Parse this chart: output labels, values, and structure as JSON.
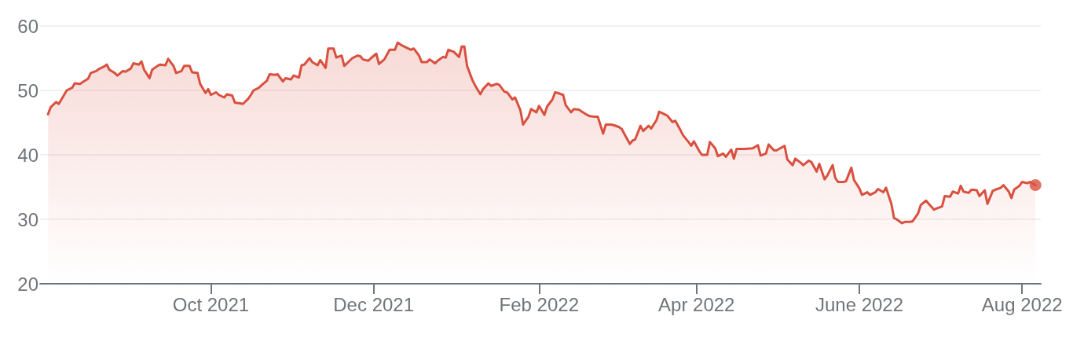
{
  "chart_data": {
    "type": "area",
    "x": [
      "2021-08-01",
      "2021-08-02",
      "2021-08-04",
      "2021-08-05",
      "2021-08-07",
      "2021-08-08",
      "2021-08-10",
      "2021-08-11",
      "2021-08-13",
      "2021-08-14",
      "2021-08-16",
      "2021-08-17",
      "2021-08-19",
      "2021-08-20",
      "2021-08-22",
      "2021-08-23",
      "2021-08-24",
      "2021-08-26",
      "2021-08-27",
      "2021-08-29",
      "2021-08-30",
      "2021-09-01",
      "2021-09-02",
      "2021-09-04",
      "2021-09-05",
      "2021-09-06",
      "2021-09-08",
      "2021-09-09",
      "2021-09-11",
      "2021-09-12",
      "2021-09-14",
      "2021-09-15",
      "2021-09-17",
      "2021-09-18",
      "2021-09-20",
      "2021-09-21",
      "2021-09-23",
      "2021-09-24",
      "2021-09-26",
      "2021-09-27",
      "2021-09-29",
      "2021-09-30",
      "2021-10-01",
      "2021-10-03",
      "2021-10-04",
      "2021-10-06",
      "2021-10-07",
      "2021-10-09",
      "2021-10-10",
      "2021-10-12",
      "2021-10-13",
      "2021-10-15",
      "2021-10-16",
      "2021-10-17",
      "2021-10-19",
      "2021-10-20",
      "2021-10-22",
      "2021-10-23",
      "2021-10-25",
      "2021-10-26",
      "2021-10-28",
      "2021-10-29",
      "2021-10-31",
      "2021-11-01",
      "2021-11-03",
      "2021-11-04",
      "2021-11-05",
      "2021-11-07",
      "2021-11-08",
      "2021-11-10",
      "2021-11-11",
      "2021-11-13",
      "2021-11-14",
      "2021-11-16",
      "2021-11-17",
      "2021-11-19",
      "2021-11-20",
      "2021-11-22",
      "2021-11-23",
      "2021-11-25",
      "2021-11-26",
      "2021-11-27",
      "2021-11-29",
      "2021-11-30",
      "2021-12-02",
      "2021-12-03",
      "2021-12-05",
      "2021-12-07",
      "2021-12-09",
      "2021-12-10",
      "2021-12-12",
      "2021-12-13",
      "2021-12-15",
      "2021-12-16",
      "2021-12-18",
      "2021-12-19",
      "2021-12-21",
      "2021-12-22",
      "2021-12-24",
      "2021-12-25",
      "2021-12-27",
      "2021-12-28",
      "2021-12-29",
      "2021-12-31",
      "2022-01-02",
      "2022-01-03",
      "2022-01-04",
      "2022-01-05",
      "2022-01-07",
      "2022-01-08",
      "2022-01-10",
      "2022-01-11",
      "2022-01-13",
      "2022-01-14",
      "2022-01-16",
      "2022-01-17",
      "2022-01-19",
      "2022-01-20",
      "2022-01-22",
      "2022-01-23",
      "2022-01-25",
      "2022-01-26",
      "2022-01-28",
      "2022-01-29",
      "2022-01-31",
      "2022-02-01",
      "2022-02-03",
      "2022-02-04",
      "2022-02-06",
      "2022-02-07",
      "2022-02-08",
      "2022-02-10",
      "2022-02-11",
      "2022-02-13",
      "2022-02-14",
      "2022-02-16",
      "2022-02-17",
      "2022-02-19",
      "2022-02-20",
      "2022-02-22",
      "2022-02-23",
      "2022-02-25",
      "2022-02-26",
      "2022-02-28",
      "2022-03-01",
      "2022-03-03",
      "2022-03-04",
      "2022-03-05",
      "2022-03-07",
      "2022-03-08",
      "2022-03-09",
      "2022-03-11",
      "2022-03-12",
      "2022-03-14",
      "2022-03-15",
      "2022-03-17",
      "2022-03-18",
      "2022-03-20",
      "2022-03-21",
      "2022-03-23",
      "2022-03-24",
      "2022-03-26",
      "2022-03-27",
      "2022-03-29",
      "2022-03-30",
      "2022-03-31",
      "2022-04-02",
      "2022-04-03",
      "2022-04-05",
      "2022-04-06",
      "2022-04-08",
      "2022-04-09",
      "2022-04-11",
      "2022-04-12",
      "2022-04-14",
      "2022-04-15",
      "2022-04-16",
      "2022-04-19",
      "2022-04-22",
      "2022-04-24",
      "2022-04-25",
      "2022-04-27",
      "2022-04-28",
      "2022-04-30",
      "2022-05-01",
      "2022-05-04",
      "2022-05-05",
      "2022-05-07",
      "2022-05-08",
      "2022-05-10",
      "2022-05-11",
      "2022-05-13",
      "2022-05-14",
      "2022-05-16",
      "2022-05-17",
      "2022-05-19",
      "2022-05-20",
      "2022-05-22",
      "2022-05-23",
      "2022-05-24",
      "2022-05-26",
      "2022-05-27",
      "2022-05-29",
      "2022-05-30",
      "2022-06-01",
      "2022-06-02",
      "2022-06-04",
      "2022-06-05",
      "2022-06-07",
      "2022-06-08",
      "2022-06-10",
      "2022-06-11",
      "2022-06-13",
      "2022-06-14",
      "2022-06-15",
      "2022-06-17",
      "2022-06-18",
      "2022-06-20",
      "2022-06-21",
      "2022-06-23",
      "2022-06-24",
      "2022-06-26",
      "2022-06-27",
      "2022-06-29",
      "2022-06-30",
      "2022-07-02",
      "2022-07-03",
      "2022-07-05",
      "2022-07-06",
      "2022-07-08",
      "2022-07-09",
      "2022-07-10",
      "2022-07-12",
      "2022-07-13",
      "2022-07-15",
      "2022-07-16",
      "2022-07-18",
      "2022-07-19",
      "2022-07-21",
      "2022-07-22",
      "2022-07-24",
      "2022-07-25",
      "2022-07-27",
      "2022-07-28",
      "2022-07-29",
      "2022-07-31",
      "2022-08-01",
      "2022-08-03",
      "2022-08-04",
      "2022-08-06"
    ],
    "series": [
      {
        "color": "#d9503f",
        "values": [
          46.3,
          47.4,
          48.2,
          47.9,
          49.3,
          50.0,
          50.4,
          51.1,
          51.0,
          51.3,
          51.8,
          52.7,
          53.0,
          53.3,
          53.7,
          54.0,
          53.2,
          52.7,
          52.3,
          53.0,
          52.9,
          53.4,
          54.2,
          54.0,
          54.5,
          53.2,
          51.9,
          53.2,
          53.8,
          54.0,
          53.9,
          54.9,
          53.8,
          52.7,
          53.0,
          53.8,
          53.8,
          52.8,
          52.7,
          51.0,
          49.6,
          50.2,
          49.3,
          49.7,
          49.3,
          48.9,
          49.4,
          49.2,
          48.1,
          48.0,
          47.9,
          48.7,
          49.3,
          50.0,
          50.4,
          50.8,
          51.5,
          52.5,
          52.4,
          52.5,
          51.4,
          51.9,
          51.7,
          52.3,
          52.0,
          53.9,
          54.0,
          55.0,
          54.4,
          53.9,
          54.7,
          53.5,
          56.5,
          56.5,
          55.1,
          55.4,
          53.8,
          54.6,
          55.0,
          55.4,
          55.3,
          54.8,
          54.6,
          55.0,
          55.7,
          54.1,
          54.8,
          56.3,
          56.3,
          57.4,
          56.9,
          56.7,
          56.3,
          56.5,
          55.4,
          54.4,
          54.4,
          54.8,
          54.2,
          54.6,
          55.2,
          55.1,
          56.3,
          56.0,
          55.2,
          56.8,
          56.8,
          53.8,
          51.6,
          50.8,
          49.4,
          50.2,
          51.1,
          50.7,
          51.0,
          50.9,
          49.8,
          49.7,
          48.6,
          48.9,
          46.9,
          44.7,
          45.9,
          47.1,
          46.6,
          47.6,
          46.2,
          47.5,
          48.6,
          49.7,
          49.6,
          49.3,
          47.7,
          46.6,
          47.1,
          47.0,
          46.7,
          46.2,
          46.0,
          45.9,
          45.9,
          43.3,
          44.7,
          44.7,
          44.6,
          44.3,
          44.0,
          43.2,
          41.7,
          42.2,
          42.4,
          44.5,
          43.7,
          44.5,
          44.1,
          45.4,
          46.7,
          46.3,
          46.1,
          45.1,
          45.3,
          43.8,
          43.0,
          42.0,
          41.4,
          42.1,
          40.6,
          40.0,
          40.0,
          42.0,
          41.0,
          39.8,
          40.2,
          39.7,
          40.8,
          39.4,
          40.9,
          40.9,
          41.0,
          41.5,
          39.9,
          40.2,
          41.6,
          40.7,
          40.7,
          41.4,
          39.3,
          38.4,
          39.4,
          38.8,
          38.4,
          39.1,
          38.9,
          37.4,
          38.6,
          36.2,
          36.8,
          38.4,
          36.4,
          35.8,
          35.8,
          35.9,
          38.0,
          36.1,
          34.8,
          33.8,
          34.2,
          33.8,
          34.2,
          34.7,
          34.2,
          34.9,
          32.4,
          30.2,
          30.0,
          29.4,
          29.6,
          29.6,
          29.7,
          30.9,
          32.2,
          32.9,
          32.4,
          31.5,
          31.7,
          32.0,
          33.6,
          33.5,
          34.3,
          34.0,
          35.2,
          34.3,
          34.1,
          34.6,
          34.5,
          33.6,
          34.5,
          32.4,
          34.4,
          34.6,
          34.9,
          35.3,
          34.3,
          33.3,
          34.6,
          35.2,
          35.8,
          35.6,
          35.8,
          35.3
        ]
      },
      {
        "type": "scatter",
        "color": "#d9503f",
        "marker": "circle",
        "x": [
          "2022-08-06"
        ],
        "values": [
          35.3
        ]
      }
    ],
    "xlim": [
      "2021-07-29",
      "2022-08-08"
    ],
    "xticks": [
      {
        "value": "2021-10-01",
        "label": "Oct 2021"
      },
      {
        "value": "2021-12-01",
        "label": "Dec 2021"
      },
      {
        "value": "2022-02-01",
        "label": "Feb 2022"
      },
      {
        "value": "2022-04-01",
        "label": "Apr 2022"
      },
      {
        "value": "2022-06-01",
        "label": "June 2022"
      },
      {
        "value": "2022-08-01",
        "label": "Aug 2022"
      }
    ],
    "ylim": [
      20,
      60
    ],
    "yticks": [
      20,
      30,
      40,
      50,
      60
    ],
    "grid": "y",
    "marker": "none",
    "line_style": "solid"
  }
}
